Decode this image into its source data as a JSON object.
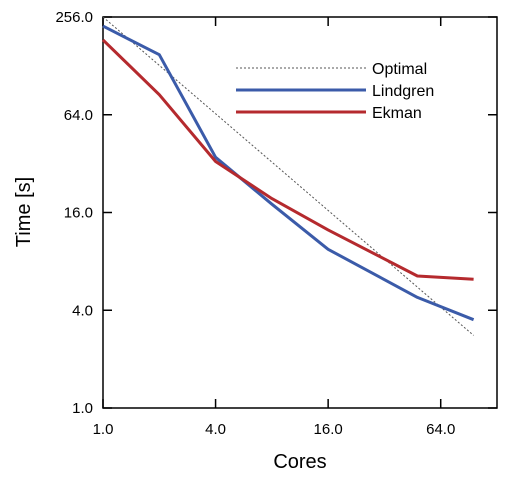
{
  "chart_data": {
    "type": "line",
    "x_scale": "log2",
    "y_scale": "log2",
    "xlabel": "Cores",
    "ylabel": "Time [s]",
    "xlim": [
      1,
      128
    ],
    "ylim": [
      1,
      256
    ],
    "x_ticks": [
      1,
      4,
      16,
      64
    ],
    "x_tick_labels": [
      "1.0",
      "4.0",
      "16.0",
      "64.0"
    ],
    "y_ticks": [
      1,
      4,
      16,
      64,
      256
    ],
    "y_tick_labels": [
      "1.0",
      "4.0",
      "16.0",
      "64.0",
      "256.0"
    ],
    "grid": false,
    "legend_position": "top-right",
    "series": [
      {
        "name": "Optimal",
        "style": "dotted",
        "color": "#555555",
        "x": [
          1,
          96
        ],
        "y": [
          256,
          2.8
        ]
      },
      {
        "name": "Lindgren",
        "style": "solid",
        "color": "#3b5ba9",
        "x": [
          1,
          2,
          4,
          8,
          16,
          48,
          96
        ],
        "y": [
          225,
          150,
          35,
          18,
          9.5,
          4.8,
          3.5
        ]
      },
      {
        "name": "Ekman",
        "style": "solid",
        "color": "#b52a2e",
        "x": [
          1,
          2,
          4,
          8,
          16,
          48,
          96
        ],
        "y": [
          185,
          85,
          33,
          19.5,
          12.5,
          6.5,
          6.2
        ]
      }
    ]
  }
}
